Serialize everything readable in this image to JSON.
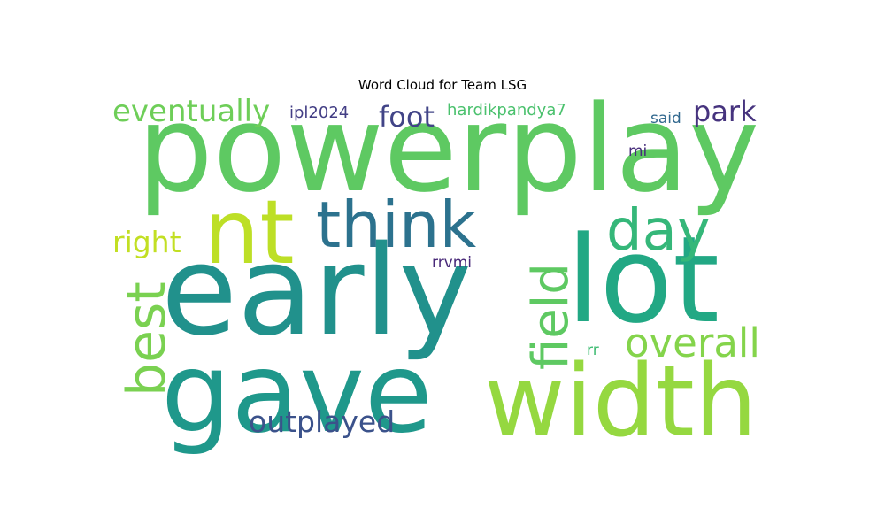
{
  "chart_data": {
    "type": "wordcloud",
    "title": "Word Cloud for Team LSG",
    "words": [
      {
        "text": "powerplay",
        "weight": 1.0,
        "color": "#5ec962"
      },
      {
        "text": "early",
        "weight": 0.92,
        "color": "#21918c"
      },
      {
        "text": "gave",
        "weight": 0.88,
        "color": "#1f988b"
      },
      {
        "text": "lot",
        "weight": 0.86,
        "color": "#22a884"
      },
      {
        "text": "width",
        "weight": 0.84,
        "color": "#95d840"
      },
      {
        "text": "nt",
        "weight": 0.66,
        "color": "#bddf26"
      },
      {
        "text": "think",
        "weight": 0.52,
        "color": "#2c728e"
      },
      {
        "text": "day",
        "weight": 0.42,
        "color": "#35b779"
      },
      {
        "text": "best",
        "weight": 0.38,
        "color": "#7ad151"
      },
      {
        "text": "field",
        "weight": 0.36,
        "color": "#5ec962"
      },
      {
        "text": "overall",
        "weight": 0.3,
        "color": "#84d44b"
      },
      {
        "text": "eventually",
        "weight": 0.24,
        "color": "#6ece58"
      },
      {
        "text": "right",
        "weight": 0.23,
        "color": "#c2df23"
      },
      {
        "text": "outplayed",
        "weight": 0.23,
        "color": "#3b528b"
      },
      {
        "text": "foot",
        "weight": 0.22,
        "color": "#414487"
      },
      {
        "text": "park",
        "weight": 0.22,
        "color": "#46337e"
      },
      {
        "text": "hardikpandya7",
        "weight": 0.13,
        "color": "#4ac16d"
      },
      {
        "text": "ipl2024",
        "weight": 0.13,
        "color": "#433e85"
      },
      {
        "text": "said",
        "weight": 0.12,
        "color": "#31688e"
      },
      {
        "text": "rrvmi",
        "weight": 0.12,
        "color": "#482878"
      },
      {
        "text": "mi",
        "weight": 0.11,
        "color": "#472d7b"
      },
      {
        "text": "rr",
        "weight": 0.11,
        "color": "#3fbc73"
      }
    ]
  }
}
